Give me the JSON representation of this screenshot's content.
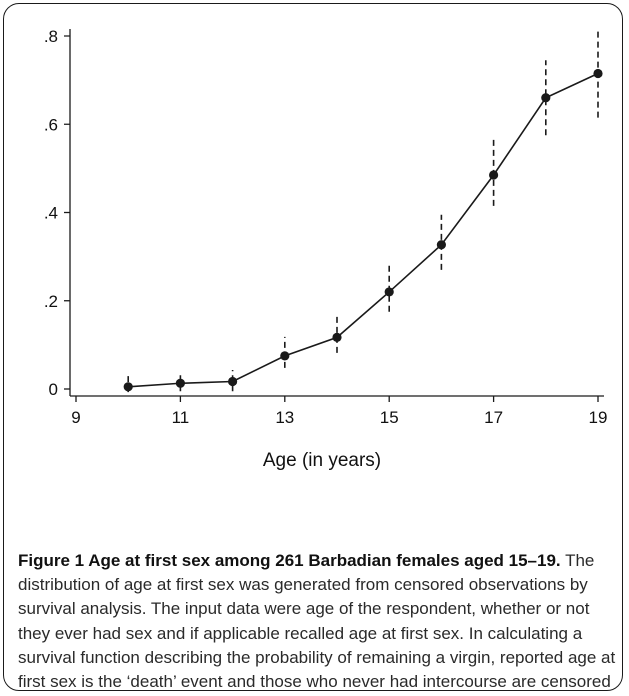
{
  "chart_data": {
    "type": "line",
    "x": [
      10,
      11,
      12,
      13,
      14,
      15,
      16,
      17,
      18,
      19
    ],
    "series": [
      {
        "values": [
          0.005,
          0.013,
          0.017,
          0.075,
          0.117,
          0.22,
          0.327,
          0.485,
          0.66,
          0.715
        ],
        "lower": [
          -0.007,
          -0.005,
          -0.005,
          0.048,
          0.082,
          0.175,
          0.27,
          0.415,
          0.575,
          0.615
        ],
        "upper": [
          0.033,
          0.038,
          0.043,
          0.118,
          0.165,
          0.28,
          0.395,
          0.565,
          0.745,
          0.815
        ]
      }
    ],
    "xticks": [
      "9",
      "11",
      "13",
      "15",
      "17",
      "19"
    ],
    "yticks": [
      "0",
      ".2",
      ".4",
      ".6",
      ".8"
    ],
    "xlim": [
      9,
      19
    ],
    "ylim": [
      0,
      0.8
    ],
    "xlabel": "Age (in years)",
    "ylabel": "",
    "title": "",
    "grid": false,
    "legend": "none",
    "line_color": "#1a1a1a",
    "ci_style": "dashed"
  },
  "caption": {
    "label": "Figure 1 Age at first sex among 261 Barbadian females aged 15–19.",
    "text": " The distribution of age at first sex was generated from censored observations by survival analysis. The input data were age of the respondent, whether or not they ever had sex and if applicable recalled age at first sex. In calculating a survival function describing the probability of remaining a virgin, reported age at first sex is the ‘death’ event and those who never had intercourse are censored at their current age."
  }
}
